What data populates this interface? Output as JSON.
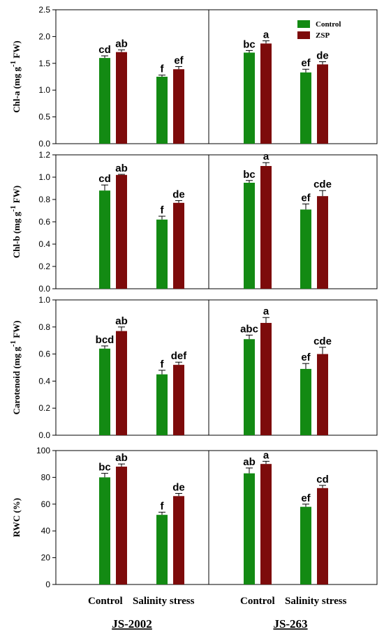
{
  "colors": {
    "control": "#138a13",
    "zsp": "#7d0b0b"
  },
  "legend": {
    "entries": [
      "Control",
      "ZSP"
    ]
  },
  "chart_data": [
    {
      "type": "bar",
      "ylabel": "Chl-a (mg g",
      "ylabel_sup": "-1",
      "ylabel_tail": " FW)",
      "ylim": [
        0,
        2.5
      ],
      "yticks": [
        "0.0",
        "0.5",
        "1.0",
        "1.5",
        "2.0",
        "2.5"
      ],
      "groups": [
        "JS-2002",
        "JS-263"
      ],
      "categories": [
        "Control",
        "Salinity stress"
      ],
      "series": [
        {
          "name": "Control",
          "values": [
            [
              1.6,
              1.25
            ],
            [
              1.7,
              1.33
            ]
          ],
          "errors": [
            [
              0.04,
              0.03
            ],
            [
              0.04,
              0.06
            ]
          ],
          "labels": [
            [
              "cd",
              "f"
            ],
            [
              "bc",
              "ef"
            ]
          ]
        },
        {
          "name": "ZSP",
          "values": [
            [
              1.71,
              1.39
            ],
            [
              1.87,
              1.48
            ]
          ],
          "errors": [
            [
              0.04,
              0.05
            ],
            [
              0.05,
              0.05
            ]
          ],
          "labels": [
            [
              "ab",
              "ef"
            ],
            [
              "a",
              "de"
            ]
          ]
        }
      ]
    },
    {
      "type": "bar",
      "ylabel": "Chl-b (mg g",
      "ylabel_sup": "-1",
      "ylabel_tail": " FW)",
      "ylim": [
        0,
        1.2
      ],
      "yticks": [
        "0.0",
        "0.2",
        "0.4",
        "0.6",
        "0.8",
        "1.0",
        "1.2"
      ],
      "groups": [
        "JS-2002",
        "JS-263"
      ],
      "categories": [
        "Control",
        "Salinity stress"
      ],
      "series": [
        {
          "name": "Control",
          "values": [
            [
              0.88,
              0.62
            ],
            [
              0.95,
              0.71
            ]
          ],
          "errors": [
            [
              0.05,
              0.03
            ],
            [
              0.02,
              0.05
            ]
          ],
          "labels": [
            [
              "cd",
              "f"
            ],
            [
              "bc",
              "ef"
            ]
          ]
        },
        {
          "name": "ZSP",
          "values": [
            [
              1.02,
              0.77
            ],
            [
              1.1,
              0.83
            ]
          ],
          "errors": [
            [
              0.005,
              0.02
            ],
            [
              0.03,
              0.05
            ]
          ],
          "labels": [
            [
              "ab",
              "de"
            ],
            [
              "a",
              "cde"
            ]
          ]
        }
      ]
    },
    {
      "type": "bar",
      "ylabel": "Carotenoid (mg g",
      "ylabel_sup": "-1",
      "ylabel_tail": " FW)",
      "ylim": [
        0,
        1.0
      ],
      "yticks": [
        "0.0",
        "0.2",
        "0.4",
        "0.6",
        "0.8",
        "1.0"
      ],
      "groups": [
        "JS-2002",
        "JS-263"
      ],
      "categories": [
        "Control",
        "Salinity stress"
      ],
      "series": [
        {
          "name": "Control",
          "values": [
            [
              0.64,
              0.45
            ],
            [
              0.71,
              0.49
            ]
          ],
          "errors": [
            [
              0.02,
              0.03
            ],
            [
              0.03,
              0.04
            ]
          ],
          "labels": [
            [
              "bcd",
              "f"
            ],
            [
              "abc",
              "ef"
            ]
          ]
        },
        {
          "name": "ZSP",
          "values": [
            [
              0.77,
              0.52
            ],
            [
              0.83,
              0.6
            ]
          ],
          "errors": [
            [
              0.03,
              0.02
            ],
            [
              0.04,
              0.05
            ]
          ],
          "labels": [
            [
              "ab",
              "def"
            ],
            [
              "a",
              "cde"
            ]
          ]
        }
      ]
    },
    {
      "type": "bar",
      "ylabel": "RWC (%)",
      "ylabel_sup": "",
      "ylabel_tail": "",
      "ylim": [
        0,
        100
      ],
      "yticks": [
        "0",
        "20",
        "40",
        "60",
        "80",
        "100"
      ],
      "groups": [
        "JS-2002",
        "JS-263"
      ],
      "categories": [
        "Control",
        "Salinity stress"
      ],
      "series": [
        {
          "name": "Control",
          "values": [
            [
              80,
              52
            ],
            [
              83,
              58
            ]
          ],
          "errors": [
            [
              3,
              2
            ],
            [
              4,
              2
            ]
          ],
          "labels": [
            [
              "bc",
              "f"
            ],
            [
              "ab",
              "ef"
            ]
          ]
        },
        {
          "name": "ZSP",
          "values": [
            [
              88,
              66
            ],
            [
              90,
              72
            ]
          ],
          "errors": [
            [
              2,
              2
            ],
            [
              2,
              2
            ]
          ],
          "labels": [
            [
              "ab",
              "de"
            ],
            [
              "a",
              "cd"
            ]
          ]
        }
      ]
    }
  ],
  "x_axis": {
    "category_labels": [
      "Control",
      "Salinity stress"
    ],
    "cultivars": [
      "JS-2002",
      "JS-263"
    ]
  }
}
